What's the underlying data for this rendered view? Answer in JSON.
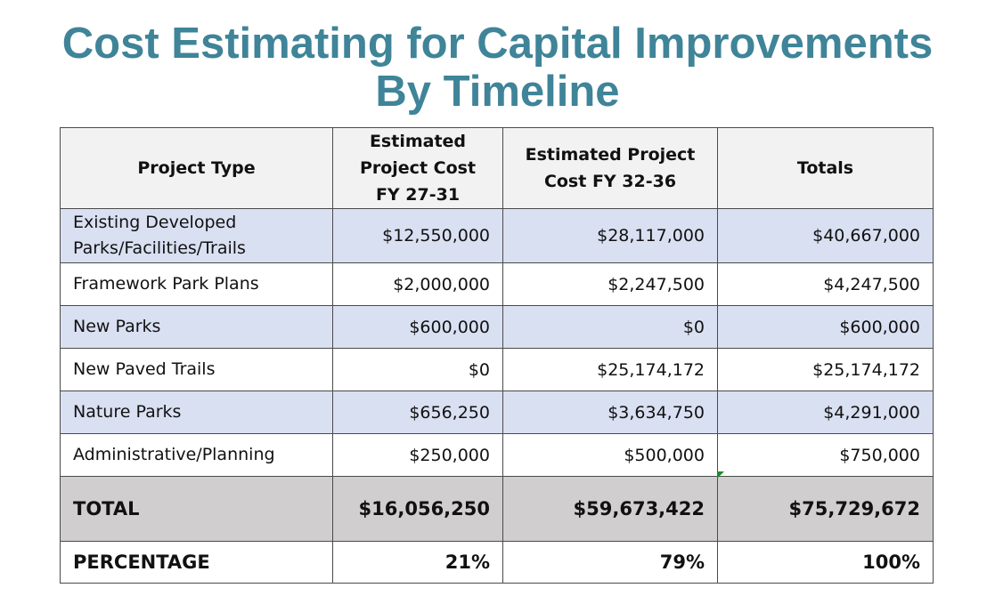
{
  "title": {
    "line1": "Cost Estimating for Capital Improvements",
    "line2": "By Timeline"
  },
  "table": {
    "headers": {
      "project_type": "Project Type",
      "fy27_31": "Estimated Project Cost FY 27-31",
      "fy32_36": "Estimated Project Cost FY 32-36",
      "totals": "Totals"
    },
    "rows": [
      {
        "label": "Existing Developed Parks/Facilities/Trails",
        "fy27_31": "$12,550,000",
        "fy32_36": "$28,117,000",
        "total": "$40,667,000"
      },
      {
        "label": "Framework Park Plans",
        "fy27_31": "$2,000,000",
        "fy32_36": "$2,247,500",
        "total": "$4,247,500"
      },
      {
        "label": "New Parks",
        "fy27_31": "$600,000",
        "fy32_36": "$0",
        "total": "$600,000"
      },
      {
        "label": "New Paved Trails",
        "fy27_31": "$0",
        "fy32_36": "$25,174,172",
        "total": "$25,174,172"
      },
      {
        "label": "Nature Parks",
        "fy27_31": "$656,250",
        "fy32_36": "$3,634,750",
        "total": "$4,291,000"
      },
      {
        "label": "Administrative/Planning",
        "fy27_31": "$250,000",
        "fy32_36": "$500,000",
        "total": "$750,000"
      }
    ],
    "total": {
      "label": "TOTAL",
      "fy27_31": "$16,056,250",
      "fy32_36": "$59,673,422",
      "total": "$75,729,672"
    },
    "percentage": {
      "label": "PERCENTAGE",
      "fy27_31": "21%",
      "fy32_36": "79%",
      "total": "100%"
    }
  },
  "colors": {
    "title": "#3f8498",
    "header_bg": "#f2f2f2",
    "shaded_row": "#d9e0f2",
    "total_row": "#d0cece"
  }
}
